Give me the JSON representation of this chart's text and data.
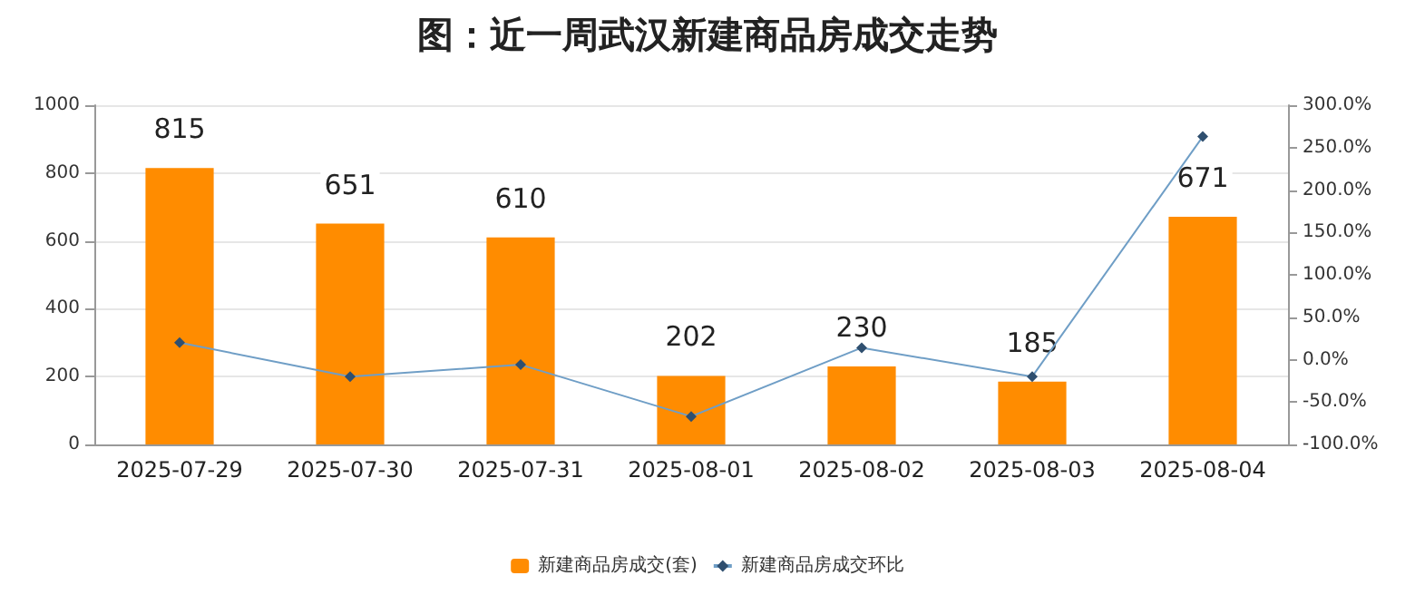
{
  "chart_data": {
    "type": "bar",
    "title": "图：近一周武汉新建商品房成交走势",
    "categories": [
      "2025-07-29",
      "2025-07-30",
      "2025-07-31",
      "2025-08-01",
      "2025-08-02",
      "2025-08-03",
      "2025-08-04"
    ],
    "series": [
      {
        "name": "新建商品房成交(套)",
        "color": "#ff8c00",
        "values": [
          815,
          651,
          610,
          202,
          230,
          185,
          671
        ],
        "data_labels": true
      },
      {
        "name": "新建商品房成交环比",
        "type": "line",
        "axis": "y2",
        "color": "#6f9ec6",
        "marker": "diamond",
        "values": [
          20,
          -20,
          -6,
          -67,
          14,
          -20,
          263
        ]
      }
    ],
    "ylim": [
      0,
      1000
    ],
    "yticks": [
      0,
      200,
      400,
      600,
      800,
      1000
    ],
    "y2lim": [
      -100,
      300
    ],
    "y2ticks": [
      {
        "value": -100,
        "label": "-100.0%"
      },
      {
        "value": -50,
        "label": "-50.0%"
      },
      {
        "value": 0,
        "label": "0.0%"
      },
      {
        "value": 50,
        "label": "50.0%"
      },
      {
        "value": 100,
        "label": "100.0%"
      },
      {
        "value": 150,
        "label": "150.0%"
      },
      {
        "value": 200,
        "label": "200.0%"
      },
      {
        "value": 250,
        "label": "250.0%"
      },
      {
        "value": 300,
        "label": "300.0%"
      }
    ],
    "grid": "y",
    "legend": "bottom"
  }
}
